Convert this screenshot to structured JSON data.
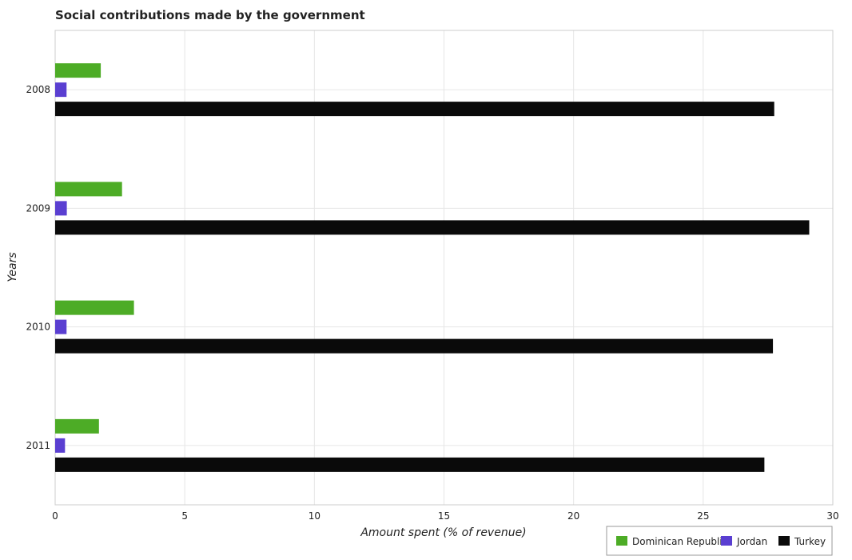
{
  "chart_data": {
    "type": "bar",
    "orientation": "horizontal",
    "title": "Social contributions made by the government",
    "xlabel": "Amount spent (% of revenue)",
    "ylabel": "Years",
    "categories": [
      "2008",
      "2009",
      "2010",
      "2011"
    ],
    "xlim": [
      0,
      30
    ],
    "xticks": [
      0,
      5,
      10,
      15,
      20,
      25,
      30
    ],
    "grid": true,
    "legend_position": "bottom-right",
    "series": [
      {
        "name": "Dominican Republic",
        "color": "#4dac26",
        "values": [
          1.76,
          2.58,
          3.04,
          1.69
        ]
      },
      {
        "name": "Jordan",
        "color": "#5a3fd1",
        "values": [
          0.44,
          0.45,
          0.44,
          0.38
        ]
      },
      {
        "name": "Turkey",
        "color": "#0a0a0a",
        "values": [
          27.74,
          29.09,
          27.69,
          27.36
        ]
      }
    ]
  }
}
